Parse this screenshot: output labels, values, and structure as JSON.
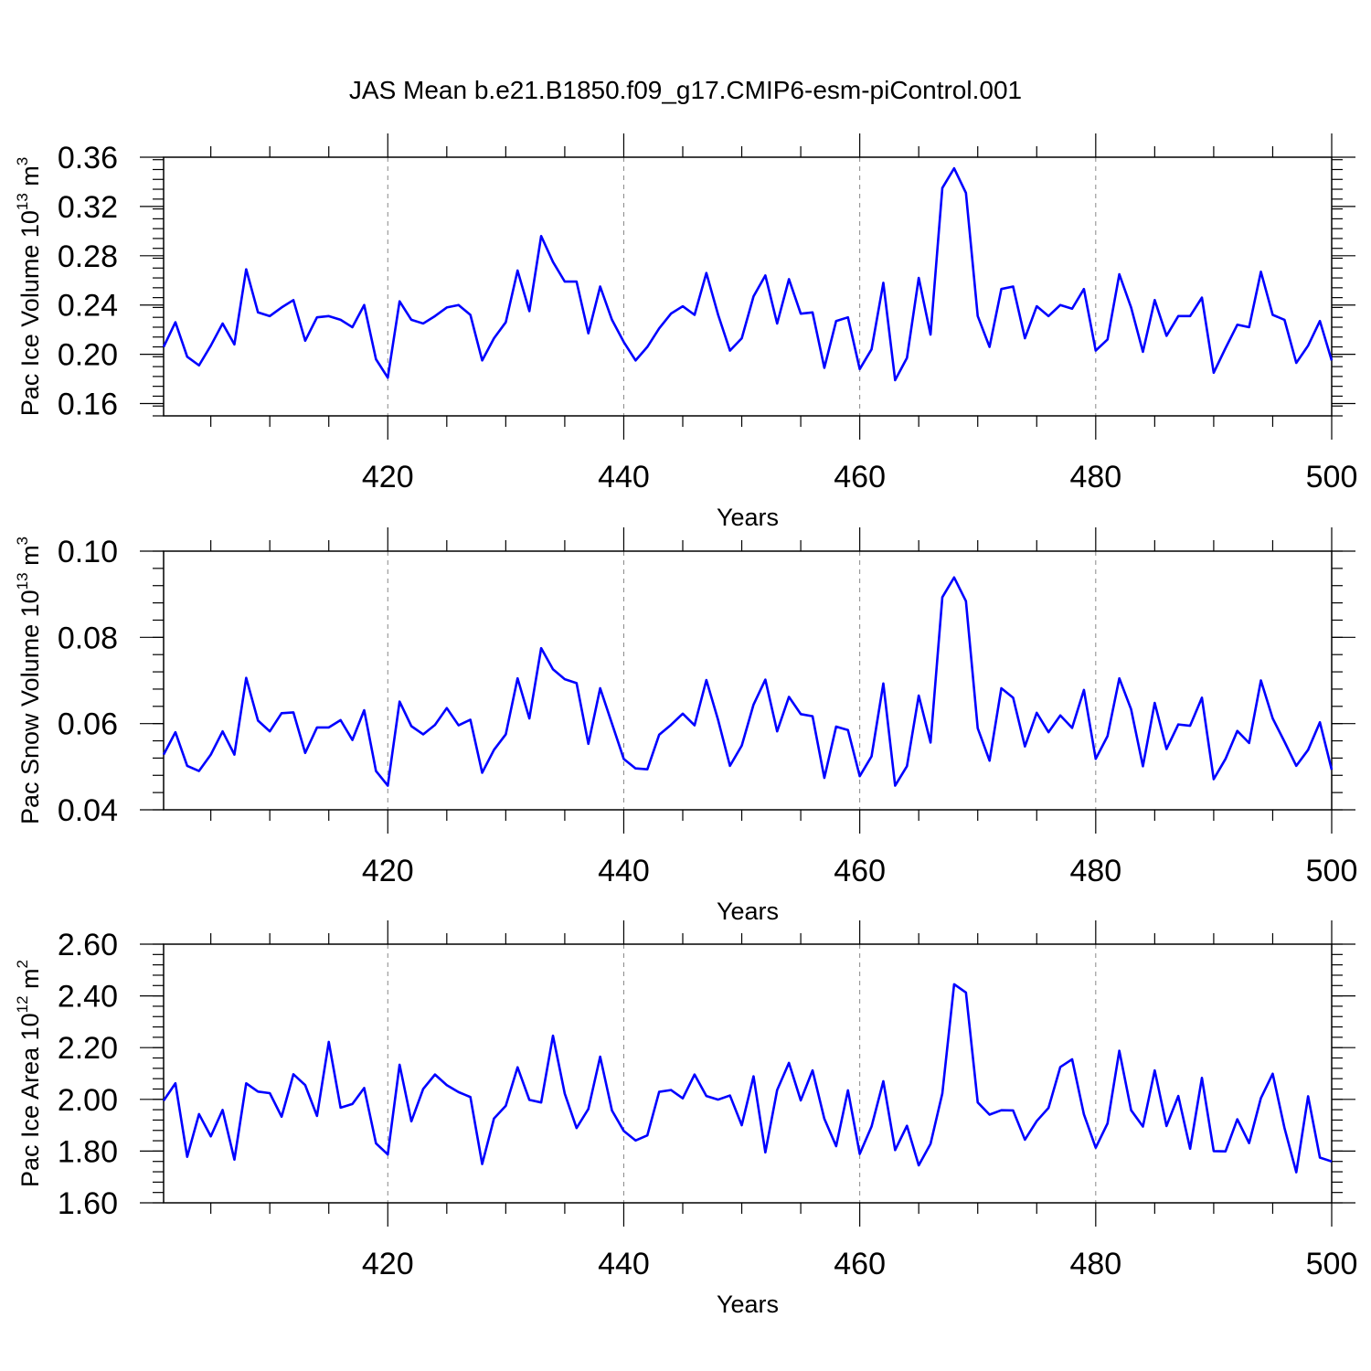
{
  "title": "JAS Mean b.e21.B1850.f09_g17.CMIP6-esm-piControl.001",
  "colors": {
    "line": "#0000ff",
    "frame": "#000000",
    "grid": "#888888"
  },
  "chart_data": [
    {
      "type": "line",
      "ylabel": {
        "main": "Pac Ice Volume 10",
        "exp": "13",
        "mid": " m",
        "unit_exp": "3"
      },
      "xlabel": "Years",
      "xlim": [
        401,
        500
      ],
      "ylim": [
        0.15,
        0.36
      ],
      "grid": "dashed vertical at major x ticks",
      "x_ticks": [
        420,
        440,
        460,
        480,
        500
      ],
      "x_tick_labels": [
        "420",
        "440",
        "460",
        "480",
        "500"
      ],
      "y_ticks": [
        0.16,
        0.2,
        0.24,
        0.28,
        0.32,
        0.36
      ],
      "y_tick_labels": [
        "0.16",
        "0.20",
        "0.24",
        "0.28",
        "0.32",
        "0.36"
      ],
      "x_start": 401,
      "values": [
        0.206,
        0.226,
        0.198,
        0.191,
        0.207,
        0.225,
        0.208,
        0.269,
        0.234,
        0.231,
        0.238,
        0.244,
        0.211,
        0.23,
        0.231,
        0.228,
        0.222,
        0.24,
        0.196,
        0.181,
        0.243,
        0.228,
        0.225,
        0.231,
        0.238,
        0.24,
        0.232,
        0.195,
        0.213,
        0.226,
        0.268,
        0.235,
        0.296,
        0.275,
        0.259,
        0.259,
        0.217,
        0.255,
        0.228,
        0.21,
        0.195,
        0.206,
        0.221,
        0.233,
        0.239,
        0.232,
        0.266,
        0.232,
        0.203,
        0.213,
        0.247,
        0.264,
        0.225,
        0.261,
        0.233,
        0.234,
        0.189,
        0.227,
        0.23,
        0.188,
        0.204,
        0.258,
        0.179,
        0.197,
        0.262,
        0.216,
        0.335,
        0.351,
        0.331,
        0.231,
        0.206,
        0.253,
        0.255,
        0.213,
        0.239,
        0.231,
        0.24,
        0.237,
        0.253,
        0.203,
        0.212,
        0.265,
        0.238,
        0.202,
        0.244,
        0.215,
        0.231,
        0.231,
        0.246,
        0.185,
        0.205,
        0.224,
        0.222,
        0.267,
        0.232,
        0.228,
        0.193,
        0.207,
        0.227,
        0.195
      ]
    },
    {
      "type": "line",
      "ylabel": {
        "main": "Pac Snow Volume 10",
        "exp": "13",
        "mid": " m",
        "unit_exp": "3"
      },
      "xlabel": "Years",
      "xlim": [
        401,
        500
      ],
      "ylim": [
        0.04,
        0.1
      ],
      "grid": "dashed vertical at major x ticks",
      "x_ticks": [
        420,
        440,
        460,
        480,
        500
      ],
      "x_tick_labels": [
        "420",
        "440",
        "460",
        "480",
        "500"
      ],
      "y_ticks": [
        0.04,
        0.06,
        0.08,
        0.1
      ],
      "y_tick_labels": [
        "0.04",
        "0.06",
        "0.08",
        "0.10"
      ],
      "x_start": 401,
      "values": [
        0.0528,
        0.058,
        0.0502,
        0.049,
        0.0528,
        0.0582,
        0.0528,
        0.0706,
        0.0607,
        0.0582,
        0.0624,
        0.0626,
        0.0532,
        0.0591,
        0.0591,
        0.0608,
        0.0562,
        0.0631,
        0.049,
        0.0456,
        0.0651,
        0.0594,
        0.0575,
        0.0597,
        0.0636,
        0.0596,
        0.0609,
        0.0486,
        0.0539,
        0.0575,
        0.0705,
        0.0612,
        0.0775,
        0.0726,
        0.0703,
        0.0694,
        0.0553,
        0.0682,
        0.06,
        0.0518,
        0.0496,
        0.0494,
        0.0574,
        0.0597,
        0.0623,
        0.0596,
        0.0701,
        0.0608,
        0.0502,
        0.0549,
        0.0644,
        0.0702,
        0.0582,
        0.0662,
        0.0622,
        0.0617,
        0.0474,
        0.0593,
        0.0585,
        0.0478,
        0.0524,
        0.0693,
        0.0456,
        0.0501,
        0.0665,
        0.0556,
        0.0893,
        0.0939,
        0.0884,
        0.0589,
        0.0514,
        0.0682,
        0.066,
        0.0547,
        0.0625,
        0.058,
        0.0619,
        0.059,
        0.0678,
        0.0518,
        0.0571,
        0.0705,
        0.0633,
        0.0501,
        0.0648,
        0.0541,
        0.0598,
        0.0595,
        0.066,
        0.0471,
        0.0518,
        0.0583,
        0.0555,
        0.07,
        0.0612,
        0.0558,
        0.0502,
        0.0539,
        0.0603,
        0.0493
      ]
    },
    {
      "type": "line",
      "ylabel": {
        "main": "Pac Ice Area 10",
        "exp": "12",
        "mid": " m",
        "unit_exp": "2"
      },
      "xlabel": "Years",
      "xlim": [
        401,
        500
      ],
      "ylim": [
        1.6,
        2.6
      ],
      "grid": "dashed vertical at major x ticks",
      "x_ticks": [
        420,
        440,
        460,
        480,
        500
      ],
      "x_tick_labels": [
        "420",
        "440",
        "460",
        "480",
        "500"
      ],
      "y_ticks": [
        1.6,
        1.8,
        2.0,
        2.2,
        2.4,
        2.6
      ],
      "y_tick_labels": [
        "1.60",
        "1.80",
        "2.00",
        "2.20",
        "2.40",
        "2.60"
      ],
      "x_start": 401,
      "values": [
        1.995,
        2.062,
        1.778,
        1.943,
        1.857,
        1.959,
        1.767,
        2.062,
        2.03,
        2.024,
        1.933,
        2.097,
        2.055,
        1.936,
        2.222,
        1.968,
        1.982,
        2.044,
        1.83,
        1.787,
        2.134,
        1.915,
        2.04,
        2.096,
        2.055,
        2.028,
        2.009,
        1.75,
        1.926,
        1.975,
        2.124,
        1.998,
        1.988,
        2.246,
        2.022,
        1.889,
        1.963,
        2.165,
        1.957,
        1.878,
        1.841,
        1.861,
        2.029,
        2.036,
        2.004,
        2.096,
        2.013,
        1.999,
        2.015,
        1.9,
        2.089,
        1.795,
        2.036,
        2.141,
        1.996,
        2.112,
        1.925,
        1.819,
        2.035,
        1.789,
        1.895,
        2.07,
        1.804,
        1.898,
        1.745,
        1.828,
        2.023,
        2.445,
        2.413,
        1.988,
        1.941,
        1.958,
        1.957,
        1.844,
        1.916,
        1.967,
        2.125,
        2.155,
        1.942,
        1.813,
        1.907,
        2.188,
        1.958,
        1.895,
        2.112,
        1.897,
        2.013,
        1.809,
        2.083,
        1.8,
        1.799,
        1.923,
        1.831,
        2.005,
        2.099,
        1.889,
        1.718,
        2.012,
        1.775,
        1.76
      ]
    }
  ]
}
